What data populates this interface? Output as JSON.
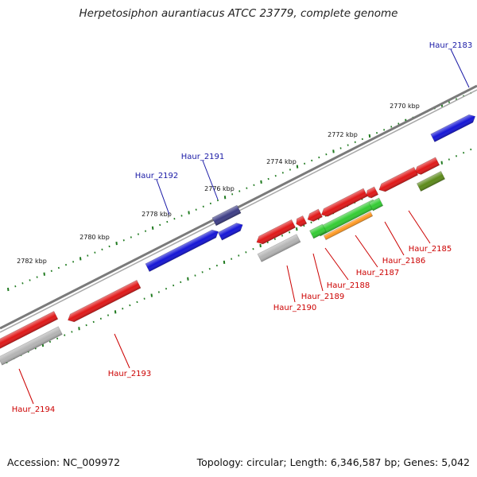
{
  "title": "Herpetosiphon aurantiacus ATCC 23779, complete genome",
  "footer": {
    "accession": "Accession: NC_009972",
    "topology": "Topology: circular; Length: 6,346,587 bp; Genes: 5,042"
  },
  "colors": {
    "backbone": "#7a7a7a",
    "tick": "#1f7a1f",
    "forward_label": "#1a1aa6",
    "reverse_label": "#cc0000",
    "red": "#e01818",
    "blue": "#1515d6",
    "navy": "#3d3d85",
    "gray": "#b4b4b4",
    "green": "#33cc33",
    "orange": "#ff9922",
    "olive": "#5c8a1a"
  },
  "scale_labels": [
    "2770 kbp",
    "2772 kbp",
    "2774 kbp",
    "2776 kbp",
    "2778 kbp",
    "2780 kbp",
    "2782 kbp"
  ],
  "forward_labels": [
    "Haur_2183",
    "Haur_2191",
    "Haur_2192"
  ],
  "reverse_labels": [
    "Haur_2185",
    "Haur_2186",
    "Haur_2187",
    "Haur_2188",
    "Haur_2189",
    "Haur_2190",
    "Haur_2193",
    "Haur_2194"
  ]
}
